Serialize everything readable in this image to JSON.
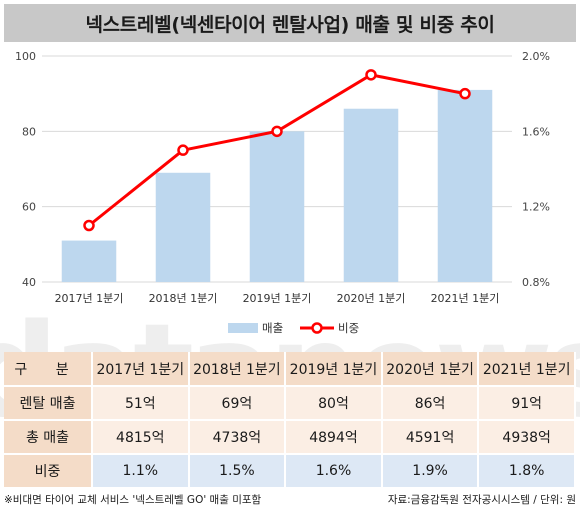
{
  "title": "넥스트레벨(넥센타이어 렌탈사업) 매출 및 비중 추이",
  "chart_data": {
    "type": "bar",
    "categories": [
      "2017년 1분기",
      "2018년 1분기",
      "2019년 1분기",
      "2020년 1분기",
      "2021년 1분기"
    ],
    "series": [
      {
        "name": "매출",
        "type": "bar",
        "axis": "left",
        "values": [
          51,
          69,
          80,
          86,
          91
        ],
        "color": "#bdd7ee"
      },
      {
        "name": "비중",
        "type": "line",
        "axis": "right",
        "values": [
          1.1,
          1.5,
          1.6,
          1.9,
          1.8
        ],
        "color": "#ff0000"
      }
    ],
    "y_left": {
      "min": 40,
      "max": 100,
      "ticks": [
        40,
        60,
        80,
        100
      ]
    },
    "y_right": {
      "min": 0.8,
      "max": 2.0,
      "ticks": [
        0.8,
        1.2,
        1.6,
        2.0
      ],
      "tick_labels": [
        "0.8%",
        "1.2%",
        "1.6%",
        "2.0%"
      ]
    },
    "grid": true,
    "legend": "bottom-center",
    "legend_labels": [
      "매출",
      "비중"
    ]
  },
  "watermark": "datanews",
  "table": {
    "header": [
      "구 분",
      "2017년 1분기",
      "2018년 1분기",
      "2019년 1분기",
      "2020년 1분기",
      "2021년 1분기"
    ],
    "rows": [
      {
        "label": "렌탈 매출",
        "cells": [
          "51억",
          "69억",
          "80억",
          "86억",
          "91억"
        ]
      },
      {
        "label": "총 매출",
        "cells": [
          "4815억",
          "4738억",
          "4894억",
          "4591억",
          "4938억"
        ]
      },
      {
        "label": "비중",
        "cells": [
          "1.1%",
          "1.5%",
          "1.6%",
          "1.9%",
          "1.8%"
        ]
      }
    ]
  },
  "footer": {
    "note": "※비대면 타이어 교체 서비스 '넥스트레벨 GO' 매출 미포함",
    "source": "자료:금융감독원 전자공시시스템 / 단위: 원"
  }
}
